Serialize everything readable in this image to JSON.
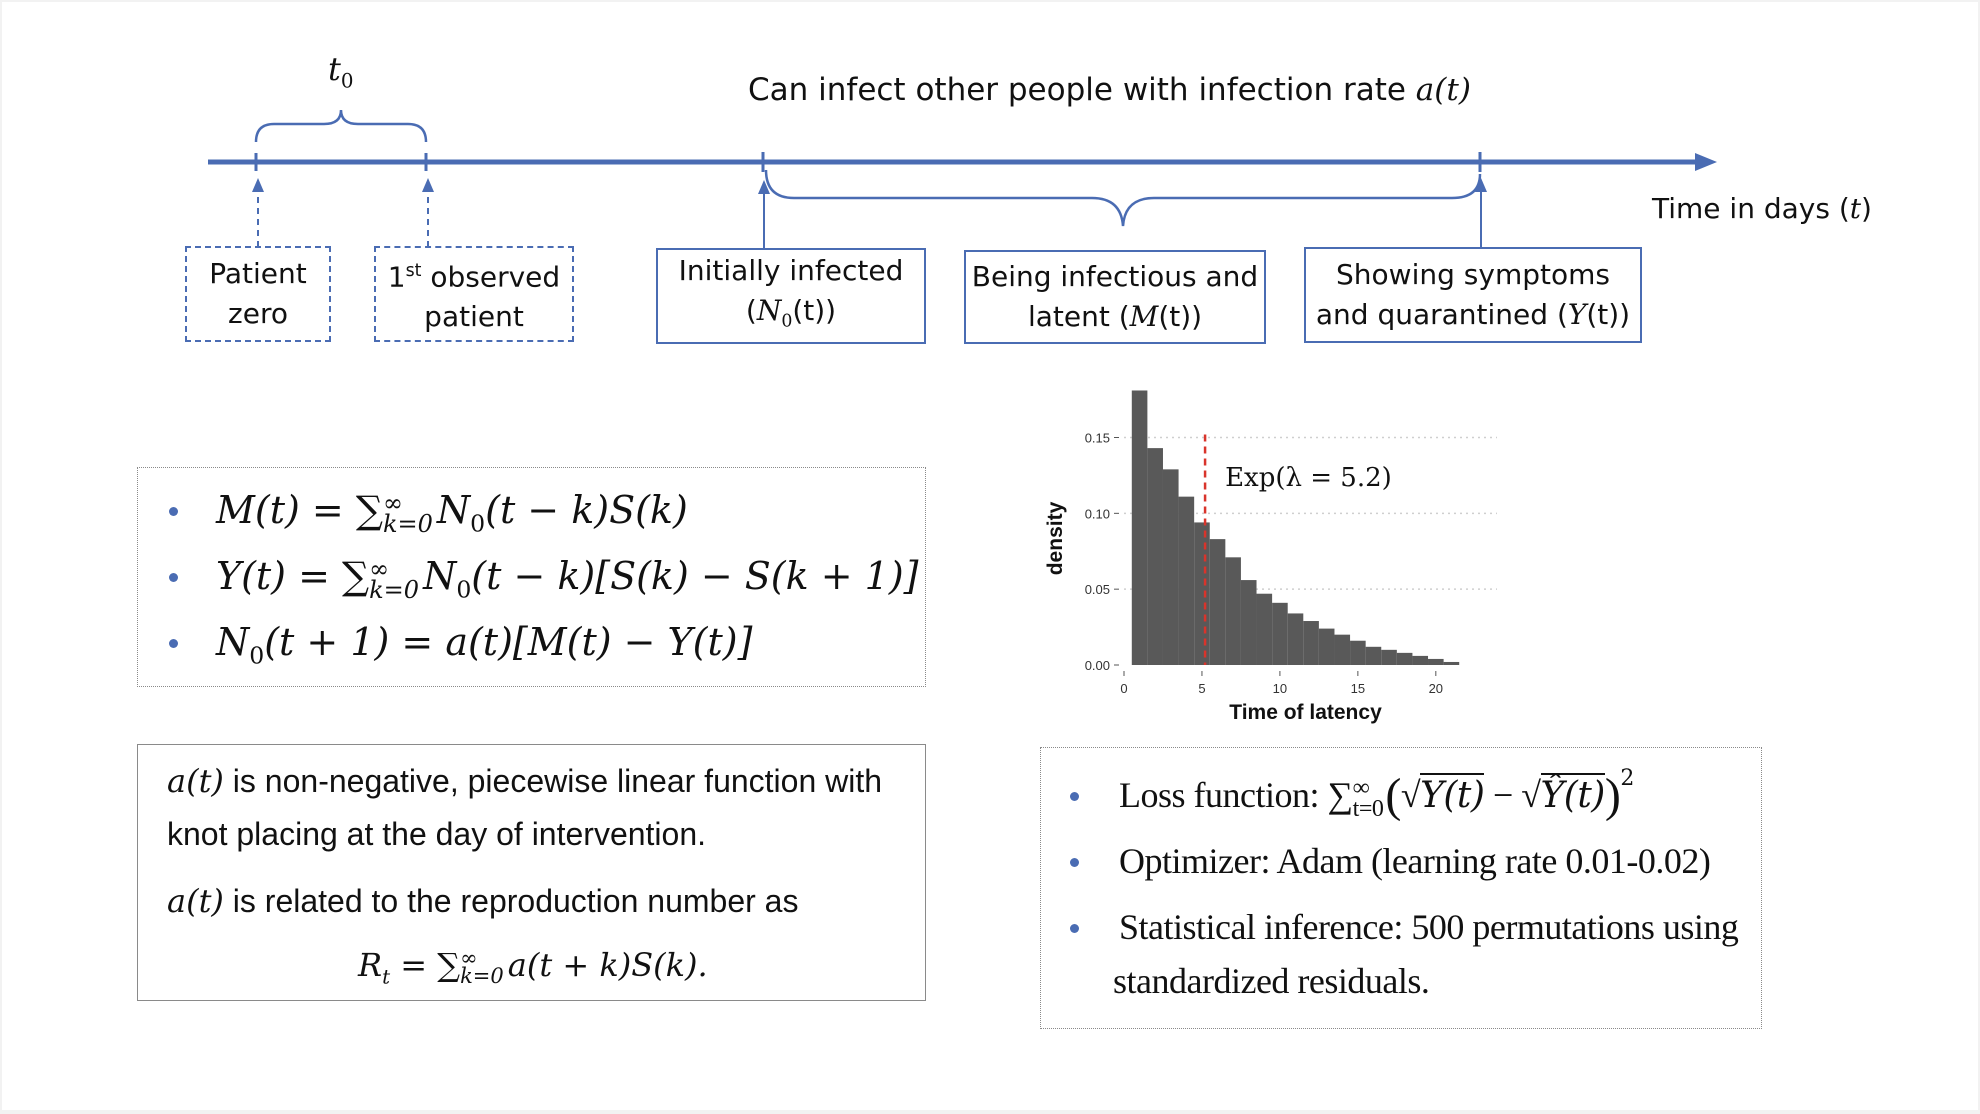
{
  "timeline": {
    "t0_label": "t",
    "t0_sub": "0",
    "infect_text": "Can infect other people with infection rate ",
    "infect_math": "a(t)",
    "axis_text": "Time in days (",
    "axis_math": "t",
    "axis_close": ")"
  },
  "boxes": {
    "patient_zero": {
      "line1": "Patient",
      "line2": "zero"
    },
    "first_observed": {
      "pre": "1",
      "sup": "st",
      "post": " observed",
      "line2": "patient"
    },
    "initially_infected": {
      "line1": "Initially infected",
      "line2_pre": "(",
      "line2_math": "N",
      "line2_sub": "0",
      "line2_post": "(t))"
    },
    "infectious_latent": {
      "line1": "Being infectious and",
      "line2_pre": "latent (",
      "line2_math": "M",
      "line2_post": "(t))"
    },
    "symptoms": {
      "line1": "Showing symptoms",
      "line2_pre": "and quarantined (",
      "line2_math": "Y",
      "line2_post": "(t))"
    }
  },
  "equations": [
    "M(t) = ∑",
    "Y(t) = ∑",
    "N"
  ],
  "eq_parts": {
    "e1_tail": "N",
    "e1_rest": "(t − k)S(k)",
    "e2_tail": "N",
    "e2_rest": "(t − k)[S(k) − S(k + 1)]",
    "e3_rest": "(t + 1) = a(t)[M(t) − Y(t)]",
    "sum_sup": "∞",
    "sum_sub": "k=0",
    "n_sub": "0"
  },
  "at_panel": {
    "line1_math": "a(t)",
    "line1_text": " is non-negative, piecewise linear function with",
    "line2": "knot placing at the day of intervention.",
    "line3_math": "a(t)",
    "line3_text": " is related to the reproduction number as",
    "rt_lhs": "R",
    "rt_sub": "t",
    "rt_eq": " = ∑",
    "rt_sup": "∞",
    "rt_sumsub": "k=0",
    "rt_rhs": "a(t + k)S(k)."
  },
  "loss_panel": {
    "loss_label": "Loss function: ∑",
    "loss_sup": "∞",
    "loss_sub": "t=0",
    "loss_y": "Y(t)",
    "loss_minus": " − ",
    "loss_yhat": "Ŷ(t)",
    "loss_power": "2",
    "optimizer": "Optimizer: Adam (learning rate 0.01-0.02)",
    "stat_line1": "Statistical inference: 500 permutations using",
    "stat_line2": "standardized residuals."
  },
  "chart_data": {
    "type": "bar",
    "xlabel": "Time of latency",
    "ylabel": "density",
    "annotation": "Exp(λ = 5.2)",
    "vline_x": 5.2,
    "xlim": [
      0,
      22
    ],
    "ylim": [
      0,
      0.18
    ],
    "xticks": [
      0,
      5,
      10,
      15,
      20
    ],
    "yticks": [
      0.0,
      0.05,
      0.1,
      0.15
    ],
    "ytick_labels": [
      "0.00",
      "0.05",
      "0.10",
      "0.15"
    ],
    "bin_width": 1,
    "bin_starts": [
      0.5,
      1.5,
      2.5,
      3.5,
      4.5,
      5.5,
      6.5,
      7.5,
      8.5,
      9.5,
      10.5,
      11.5,
      12.5,
      13.5,
      14.5,
      15.5,
      16.5,
      17.5,
      18.5,
      19.5,
      20.5
    ],
    "values": [
      0.181,
      0.143,
      0.129,
      0.111,
      0.094,
      0.083,
      0.071,
      0.056,
      0.047,
      0.041,
      0.034,
      0.029,
      0.024,
      0.02,
      0.016,
      0.012,
      0.01,
      0.008,
      0.006,
      0.004,
      0.002
    ],
    "bar_color": "#595959",
    "vline_color": "#d9342b"
  },
  "colors": {
    "accent": "#4a6cb3"
  }
}
